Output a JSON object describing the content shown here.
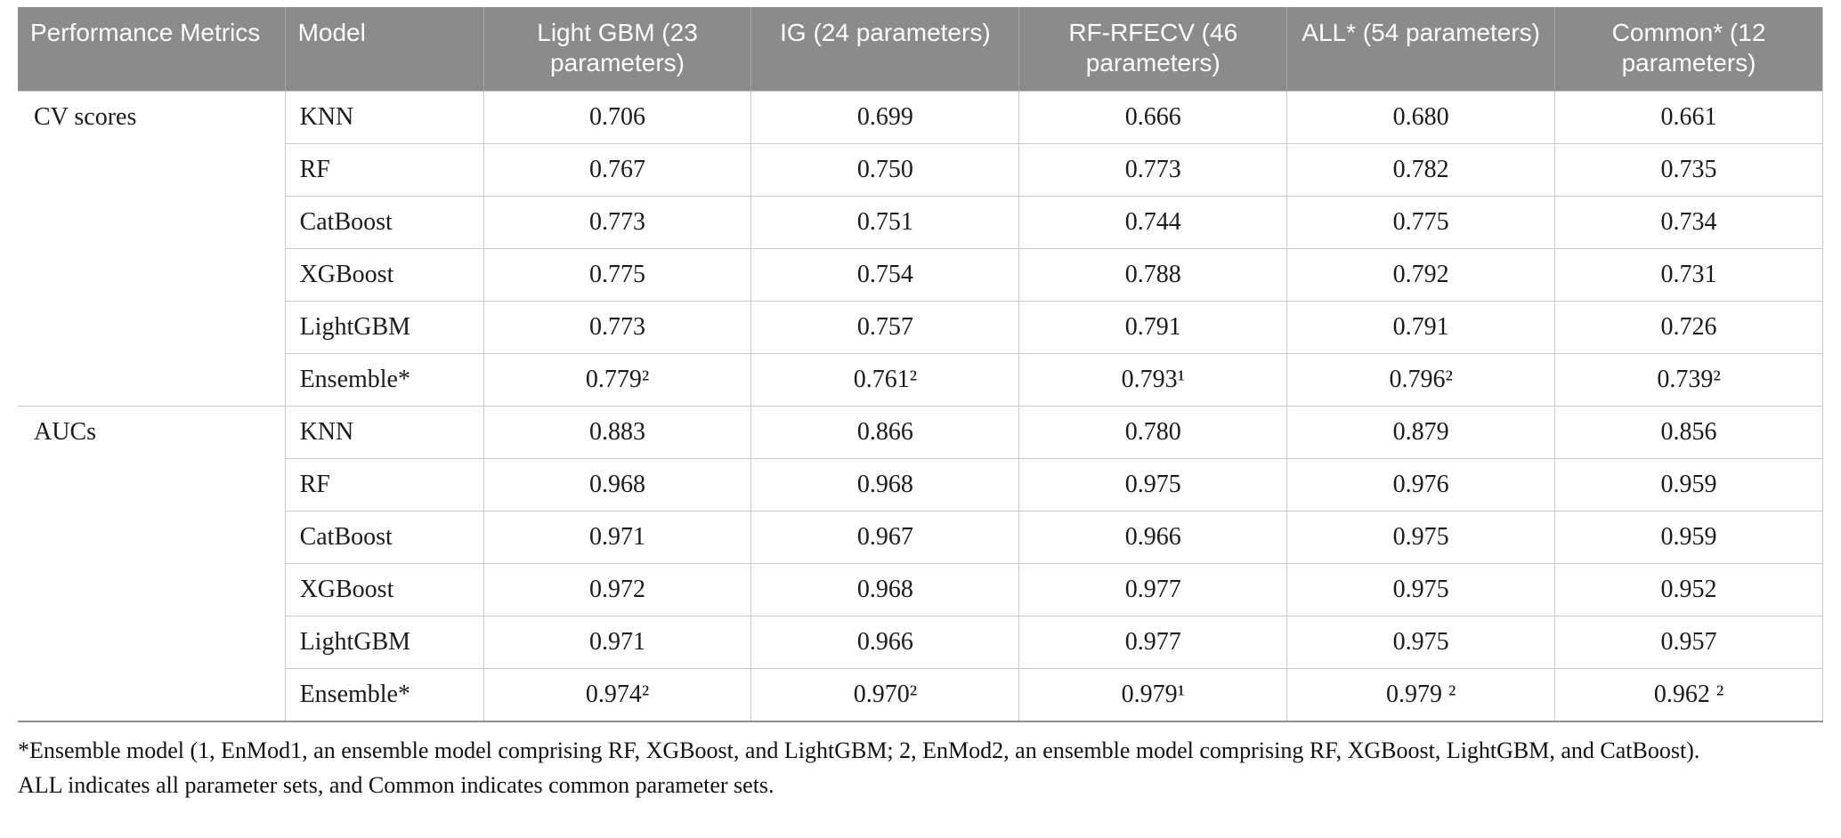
{
  "table": {
    "headers": [
      "Performance Metrics",
      "Model",
      "Light GBM (23 parameters)",
      "IG (24 parameters)",
      "RF-RFECV (46 parameters)",
      "ALL* (54 parameters)",
      "Common* (12 parameters)"
    ],
    "sections": [
      {
        "metric": "CV scores",
        "rows": [
          {
            "model": "KNN",
            "values": [
              "0.706",
              "0.699",
              "0.666",
              "0.680",
              "0.661"
            ]
          },
          {
            "model": "RF",
            "values": [
              "0.767",
              "0.750",
              "0.773",
              "0.782",
              "0.735"
            ]
          },
          {
            "model": "CatBoost",
            "values": [
              "0.773",
              "0.751",
              "0.744",
              "0.775",
              "0.734"
            ]
          },
          {
            "model": "XGBoost",
            "values": [
              "0.775",
              "0.754",
              "0.788",
              "0.792",
              "0.731"
            ]
          },
          {
            "model": "LightGBM",
            "values": [
              "0.773",
              "0.757",
              "0.791",
              "0.791",
              "0.726"
            ]
          },
          {
            "model": "Ensemble*",
            "values": [
              "0.779²",
              "0.761²",
              "0.793¹",
              "0.796²",
              "0.739²"
            ]
          }
        ]
      },
      {
        "metric": "AUCs",
        "rows": [
          {
            "model": "KNN",
            "values": [
              "0.883",
              "0.866",
              "0.780",
              "0.879",
              "0.856"
            ]
          },
          {
            "model": "RF",
            "values": [
              "0.968",
              "0.968",
              "0.975",
              "0.976",
              "0.959"
            ]
          },
          {
            "model": "CatBoost",
            "values": [
              "0.971",
              "0.967",
              "0.966",
              "0.975",
              "0.959"
            ]
          },
          {
            "model": "XGBoost",
            "values": [
              "0.972",
              "0.968",
              "0.977",
              "0.975",
              "0.952"
            ]
          },
          {
            "model": "LightGBM",
            "values": [
              "0.971",
              "0.966",
              "0.977",
              "0.975",
              "0.957"
            ]
          },
          {
            "model": "Ensemble*",
            "values": [
              "0.974²",
              "0.970²",
              "0.979¹",
              "0.979 ²",
              "0.962 ²"
            ]
          }
        ]
      }
    ]
  },
  "footnotes": [
    "*Ensemble model (1, EnMod1, an ensemble model comprising RF, XGBoost, and LightGBM; 2, EnMod2, an ensemble model comprising RF, XGBoost, LightGBM, and CatBoost).",
    "ALL indicates all parameter sets, and Common indicates common parameter sets."
  ],
  "colors": {
    "header_bg": "#8b8b8b",
    "header_text": "#ffffff",
    "grid_line": "#cbcbcb",
    "bottom_rule": "#8f8f8f",
    "body_text": "#1b1b1b"
  }
}
